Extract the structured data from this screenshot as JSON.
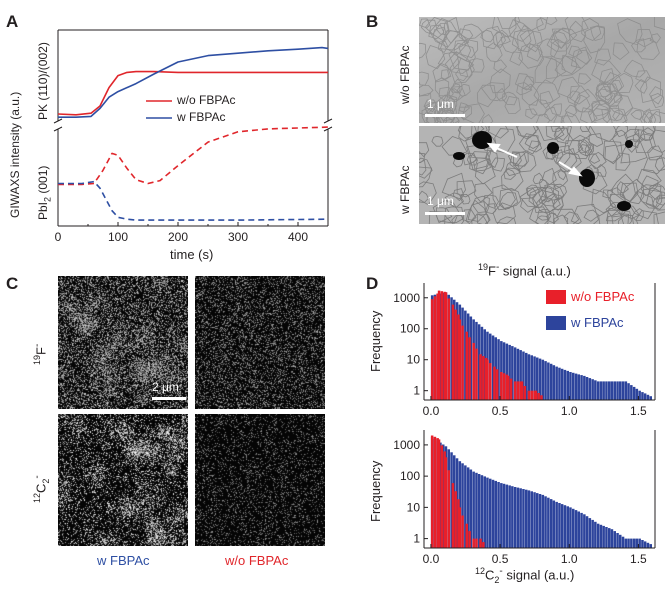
{
  "panels": {
    "a": {
      "label": "A",
      "ylabel_main": "GIWAXS  intensity (a.u.)",
      "ylabel_top": "PK (110)/(002)",
      "ylabel_bottom_pre": "PbI",
      "ylabel_bottom_sub": "2",
      "ylabel_bottom_post": " (001)",
      "xlabel": "time (s)",
      "legend": [
        "w/o FBPAc",
        "w FBPAc"
      ]
    },
    "b": {
      "label": "B",
      "rows": [
        "w/o FBPAc",
        "w FBPAc"
      ],
      "scale": "1 μm"
    },
    "c": {
      "label": "C",
      "scale": "2 μm",
      "row_labels": [
        {
          "pre": "",
          "sup": "19",
          "main": "F",
          "sup2": "-"
        },
        {
          "pre": "",
          "sup": "12",
          "main": "C",
          "sub": "2",
          "sup2": "-"
        }
      ],
      "col_labels": [
        "w FBPAc",
        "w/o FBPAc"
      ]
    },
    "d": {
      "label": "D",
      "top_title_sup": "19",
      "top_title": "F",
      "top_title_sup2": "-",
      "top_title_post": " signal (a.u.)",
      "ylabel": "Frequency",
      "bottom_xlabel_sup": "12",
      "bottom_xlabel_main": "C",
      "bottom_xlabel_sub": "2",
      "bottom_xlabel_sup2": "-",
      "bottom_xlabel_post": " signal (a.u.)",
      "legend": [
        "w/o FBPAc",
        "w FBPAc"
      ]
    }
  },
  "chart_data": [
    {
      "type": "line",
      "panel": "A",
      "xlabel": "time (s)",
      "xlim": [
        0,
        450
      ],
      "x_ticks": [
        0,
        100,
        200,
        300,
        400
      ],
      "colors": {
        "w/o FBPAc": "#e0262b",
        "w FBPAc": "#2e4fa3"
      },
      "series": [
        {
          "name": "w/o FBPAc",
          "signal": "PK (110)/(002)",
          "style": "solid",
          "x": [
            0,
            30,
            55,
            70,
            85,
            100,
            115,
            130,
            160,
            200,
            300,
            450
          ],
          "y": [
            0.05,
            0.04,
            0.06,
            0.15,
            0.38,
            0.53,
            0.57,
            0.58,
            0.58,
            0.57,
            0.57,
            0.57
          ]
        },
        {
          "name": "w FBPAc",
          "signal": "PK (110)/(002)",
          "style": "solid",
          "x": [
            0,
            30,
            55,
            70,
            85,
            100,
            130,
            160,
            200,
            250,
            300,
            350,
            400,
            440,
            450
          ],
          "y": [
            0.01,
            0.01,
            0.02,
            0.12,
            0.26,
            0.33,
            0.43,
            0.55,
            0.7,
            0.78,
            0.81,
            0.84,
            0.86,
            0.88,
            0.87
          ]
        },
        {
          "name": "w/o FBPAc",
          "signal": "PbI2 (001)",
          "style": "dashed",
          "x": [
            0,
            40,
            60,
            75,
            90,
            100,
            115,
            130,
            150,
            170,
            200,
            250,
            300,
            350,
            400,
            450
          ],
          "y": [
            0.4,
            0.4,
            0.41,
            0.55,
            0.73,
            0.71,
            0.57,
            0.45,
            0.41,
            0.44,
            0.6,
            0.85,
            0.96,
            0.99,
            1.0,
            1.01
          ]
        },
        {
          "name": "w FBPAc",
          "signal": "PbI2 (001)",
          "style": "dashed",
          "x": [
            0,
            40,
            60,
            70,
            80,
            90,
            100,
            115,
            130,
            200,
            300,
            450
          ],
          "y": [
            0.41,
            0.41,
            0.43,
            0.36,
            0.24,
            0.12,
            0.05,
            0.03,
            0.02,
            0.02,
            0.02,
            0.03
          ]
        }
      ]
    },
    {
      "type": "bar",
      "panel": "D-top",
      "xlabel": "19F- signal (a.u.)",
      "ylabel": "Frequency",
      "y_scale": "log",
      "xlim": [
        -0.05,
        1.62
      ],
      "ylim": [
        0.5,
        3000
      ],
      "x_ticks": [
        0.0,
        0.5,
        1.0,
        1.5
      ],
      "y_ticks": [
        1,
        10,
        100,
        1000
      ],
      "bin_width": 0.02,
      "colors": {
        "w/o FBPAc": "#e8202a",
        "w FBPAc": "#2d449c"
      },
      "series": [
        {
          "name": "w FBPAc",
          "bin_start": [
            0,
            0.1,
            0.2,
            0.3,
            0.4,
            0.5,
            0.6,
            0.7,
            0.8,
            0.9,
            1.0,
            1.1,
            1.2,
            1.3,
            1.4,
            1.5
          ],
          "count": [
            1200,
            1500,
            600,
            200,
            80,
            40,
            25,
            15,
            10,
            6,
            4,
            3,
            2,
            2,
            2,
            1
          ]
        },
        {
          "name": "w/o FBPAc",
          "bin_start": [
            0,
            0.05,
            0.1,
            0.15,
            0.2,
            0.25,
            0.3,
            0.35,
            0.4,
            0.45,
            0.5,
            0.55,
            0.6,
            0.65,
            0.7,
            0.75
          ],
          "count": [
            900,
            1700,
            1500,
            600,
            200,
            80,
            35,
            15,
            10,
            6,
            4,
            3,
            2,
            2,
            1,
            1
          ]
        }
      ]
    },
    {
      "type": "bar",
      "panel": "D-bottom",
      "xlabel": "12C2- signal (a.u.)",
      "ylabel": "Frequency",
      "y_scale": "log",
      "xlim": [
        -0.05,
        1.62
      ],
      "ylim": [
        0.5,
        3000
      ],
      "x_ticks": [
        0.0,
        0.5,
        1.0,
        1.5
      ],
      "y_ticks": [
        1,
        10,
        100,
        1000
      ],
      "bin_width": 0.02,
      "colors": {
        "w/o FBPAc": "#e8202a",
        "w FBPAc": "#2d449c"
      },
      "series": [
        {
          "name": "w FBPAc",
          "bin_start": [
            0,
            0.1,
            0.2,
            0.3,
            0.4,
            0.5,
            0.6,
            0.7,
            0.8,
            0.9,
            1.0,
            1.1,
            1.2,
            1.3,
            1.4,
            1.5
          ],
          "count": [
            1800,
            900,
            300,
            140,
            90,
            60,
            45,
            35,
            25,
            15,
            10,
            6,
            3,
            2,
            1,
            1
          ]
        },
        {
          "name": "w/o FBPAc",
          "bin_start": [
            0,
            0.05,
            0.1,
            0.15,
            0.2,
            0.25,
            0.3,
            0.35
          ],
          "count": [
            2000,
            1500,
            400,
            60,
            10,
            3,
            1,
            1
          ]
        }
      ]
    }
  ]
}
